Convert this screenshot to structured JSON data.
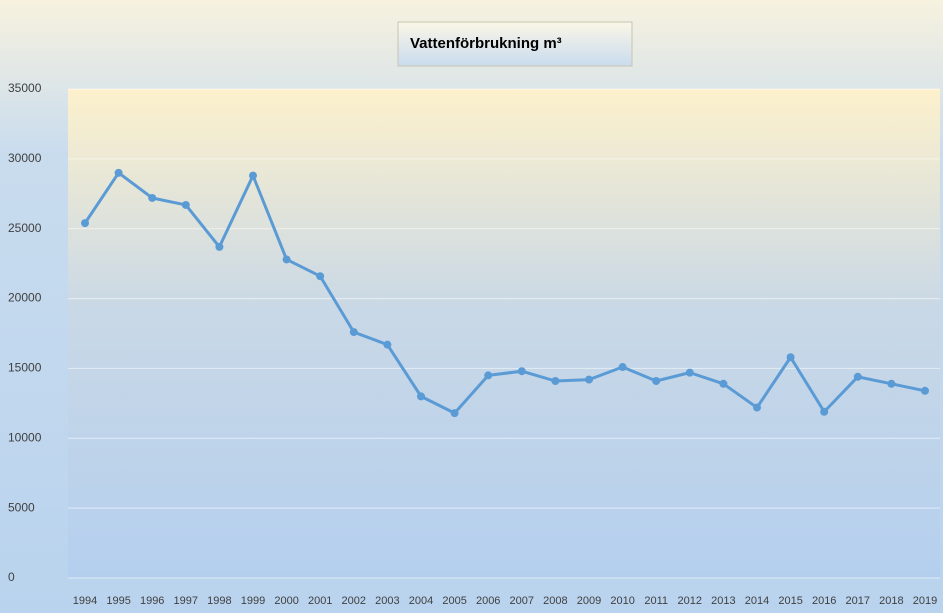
{
  "chart_data": {
    "type": "line",
    "title": "Vattenförbrukning m³",
    "categories": [
      "1994",
      "1995",
      "1996",
      "1997",
      "1998",
      "1999",
      "2000",
      "2001",
      "2002",
      "2003",
      "2004",
      "2005",
      "2006",
      "2007",
      "2008",
      "2009",
      "2010",
      "2011",
      "2012",
      "2013",
      "2014",
      "2015",
      "2016",
      "2017",
      "2018",
      "2019"
    ],
    "values": [
      25400,
      29000,
      27200,
      26700,
      23700,
      28800,
      22800,
      21600,
      17600,
      16700,
      13000,
      11800,
      14500,
      14800,
      14100,
      14200,
      15100,
      14100,
      14700,
      13900,
      12200,
      15800,
      11900,
      14400,
      13900,
      13400
    ],
    "color": "#5b9bd5",
    "ylim": [
      0,
      35000
    ],
    "yticks": [
      0,
      5000,
      10000,
      15000,
      20000,
      25000,
      30000,
      35000
    ],
    "grid": true
  }
}
